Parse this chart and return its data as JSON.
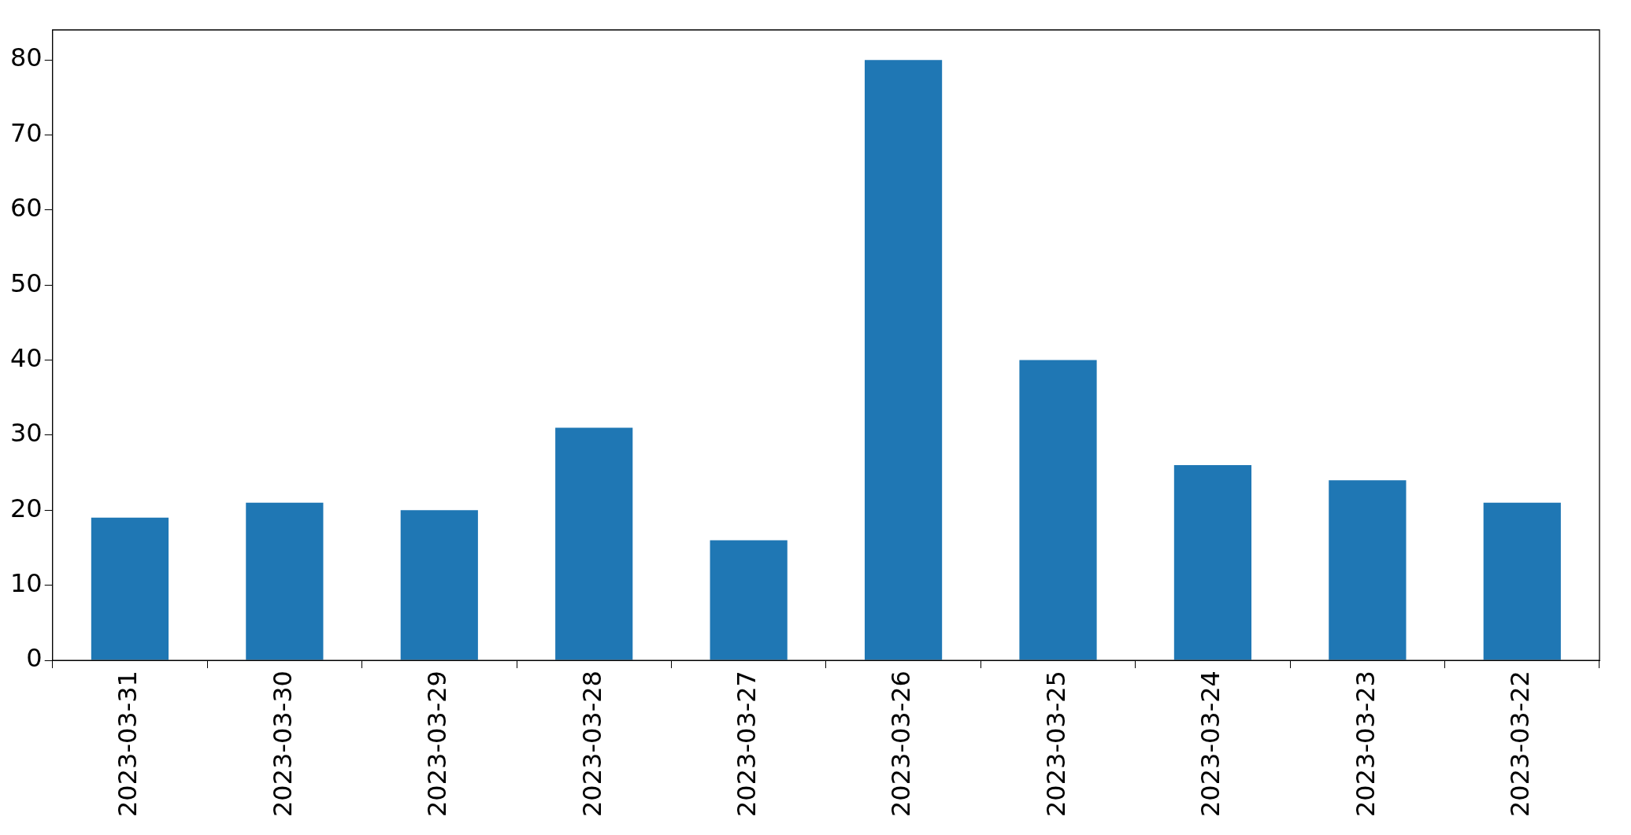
{
  "chart_data": {
    "type": "bar",
    "categories": [
      "2023-03-31",
      "2023-03-30",
      "2023-03-29",
      "2023-03-28",
      "2023-03-27",
      "2023-03-26",
      "2023-03-25",
      "2023-03-24",
      "2023-03-23",
      "2023-03-22"
    ],
    "values": [
      19,
      21,
      20,
      31,
      16,
      80,
      40,
      26,
      24,
      21
    ],
    "color": "#1f77b4",
    "ylim": [
      0,
      84
    ],
    "yticks": [
      0,
      10,
      20,
      30,
      40,
      50,
      60,
      70,
      80
    ],
    "grid": false,
    "legend": false
  }
}
